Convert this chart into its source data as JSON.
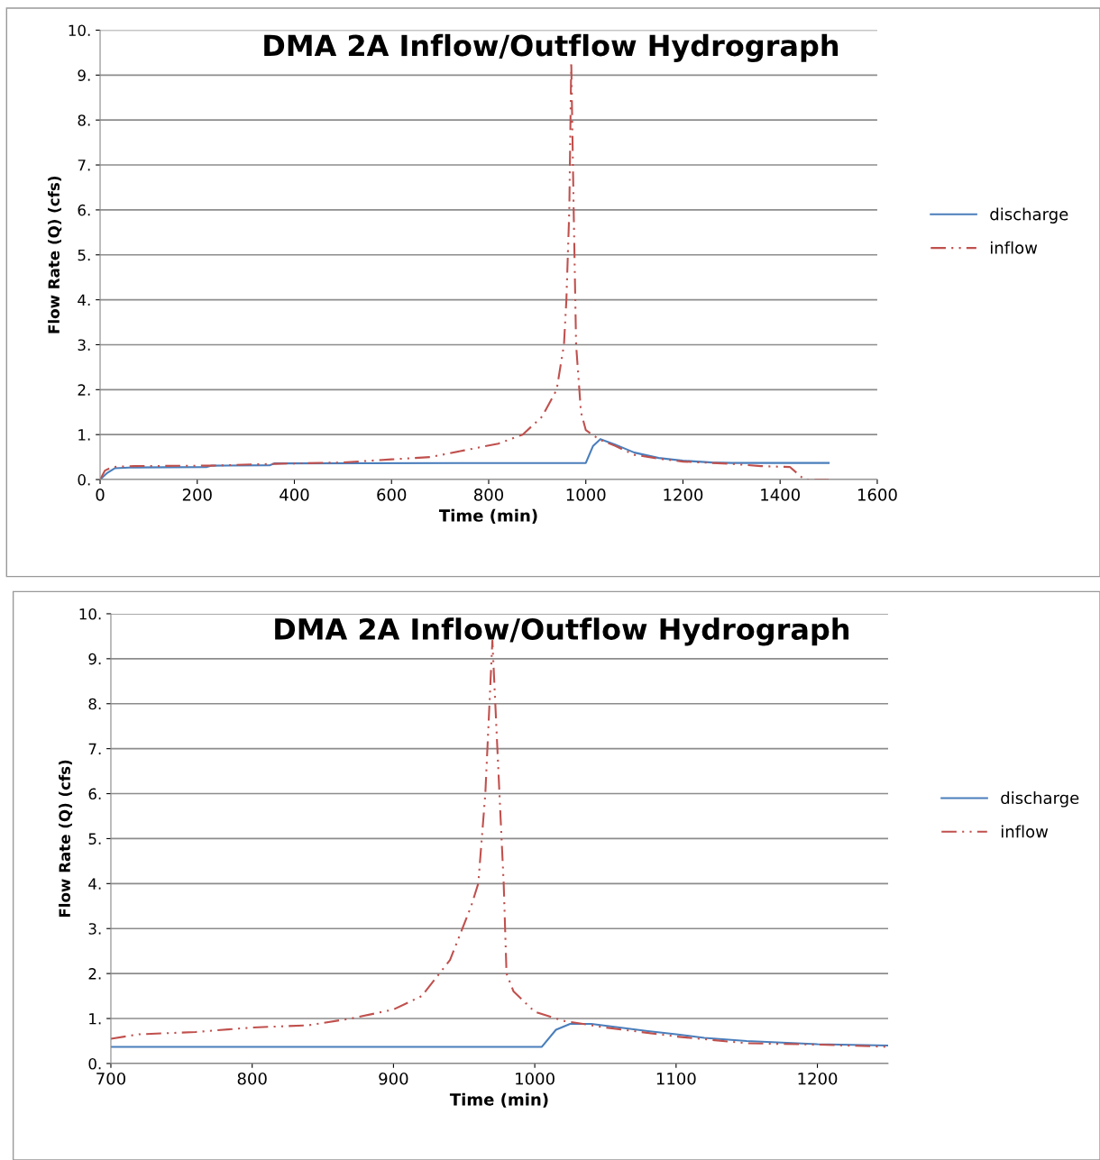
{
  "chart_data": [
    {
      "type": "line",
      "title": "DMA 2A Inflow/Outflow Hydrograph",
      "xlabel": "Time (min)",
      "ylabel": "Flow Rate (Q) (cfs)",
      "xlim": [
        0,
        1600
      ],
      "xticks": [
        0,
        200,
        400,
        600,
        800,
        1000,
        1200,
        1400,
        1600
      ],
      "ylim": [
        0,
        10
      ],
      "yticks": [
        {
          "value": 0,
          "label": "0."
        },
        {
          "value": 1,
          "label": "1."
        },
        {
          "value": 2,
          "label": "2."
        },
        {
          "value": 3,
          "label": "3."
        },
        {
          "value": 4,
          "label": "4."
        },
        {
          "value": 5,
          "label": "5."
        },
        {
          "value": 6,
          "label": "6."
        },
        {
          "value": 7,
          "label": "7."
        },
        {
          "value": 8,
          "label": "8."
        },
        {
          "value": 9,
          "label": "9."
        },
        {
          "value": 10,
          "label": "10."
        }
      ],
      "grid": "y",
      "legend": "right",
      "marker": "none",
      "series": [
        {
          "name": "discharge",
          "color": "#4a7ebb",
          "line_style": "solid",
          "x": [
            0,
            15,
            30,
            70,
            220,
            230,
            350,
            360,
            1000,
            1015,
            1030,
            1060,
            1100,
            1150,
            1200,
            1260,
            1300,
            1500
          ],
          "values": [
            0,
            0.15,
            0.25,
            0.27,
            0.28,
            0.31,
            0.32,
            0.36,
            0.37,
            0.75,
            0.9,
            0.78,
            0.6,
            0.48,
            0.42,
            0.38,
            0.37,
            0.37
          ]
        },
        {
          "name": "inflow",
          "color": "#c0504d",
          "line_style": "dashed",
          "x": [
            0,
            10,
            25,
            70,
            230,
            360,
            500,
            600,
            680,
            750,
            820,
            870,
            910,
            940,
            955,
            960,
            966,
            970,
            975,
            980,
            990,
            1000,
            1020,
            1030,
            1060,
            1100,
            1160,
            1200,
            1300,
            1360,
            1420,
            1450,
            1500
          ],
          "values": [
            0,
            0.2,
            0.28,
            0.3,
            0.31,
            0.35,
            0.38,
            0.45,
            0.5,
            0.65,
            0.8,
            1.0,
            1.4,
            2.0,
            3.0,
            4.0,
            6.0,
            9.3,
            6.0,
            3.0,
            1.5,
            1.1,
            0.95,
            0.88,
            0.75,
            0.55,
            0.45,
            0.4,
            0.35,
            0.3,
            0.28,
            0.0,
            0.0
          ]
        }
      ]
    },
    {
      "type": "line",
      "title": "DMA 2A Inflow/Outflow Hydrograph",
      "xlabel": "Time (min)",
      "ylabel": "Flow Rate (Q) (cfs)",
      "xlim": [
        700,
        1250
      ],
      "xticks": [
        700,
        800,
        900,
        1000,
        1100,
        1200
      ],
      "ylim": [
        0,
        10
      ],
      "yticks": [
        {
          "value": 0,
          "label": "0."
        },
        {
          "value": 1,
          "label": "1."
        },
        {
          "value": 2,
          "label": "2."
        },
        {
          "value": 3,
          "label": "3."
        },
        {
          "value": 4,
          "label": "4."
        },
        {
          "value": 5,
          "label": "5."
        },
        {
          "value": 6,
          "label": "6."
        },
        {
          "value": 7,
          "label": "7."
        },
        {
          "value": 8,
          "label": "8."
        },
        {
          "value": 9,
          "label": "9."
        },
        {
          "value": 10,
          "label": "10."
        }
      ],
      "grid": "y",
      "legend": "right",
      "marker": "none",
      "series": [
        {
          "name": "discharge",
          "color": "#4a7ebb",
          "line_style": "solid",
          "x": [
            700,
            1005,
            1015,
            1025,
            1040,
            1060,
            1080,
            1100,
            1120,
            1150,
            1200,
            1250
          ],
          "values": [
            0.37,
            0.37,
            0.75,
            0.88,
            0.88,
            0.8,
            0.72,
            0.65,
            0.57,
            0.5,
            0.43,
            0.4
          ]
        },
        {
          "name": "inflow",
          "color": "#c0504d",
          "line_style": "dashed",
          "x": [
            700,
            720,
            760,
            800,
            840,
            870,
            900,
            920,
            940,
            955,
            960,
            965,
            970,
            975,
            978,
            980,
            985,
            1000,
            1020,
            1030,
            1050,
            1100,
            1150,
            1200,
            1250
          ],
          "values": [
            0.55,
            0.65,
            0.7,
            0.8,
            0.85,
            1.0,
            1.2,
            1.5,
            2.3,
            3.5,
            4.0,
            6.0,
            9.4,
            6.0,
            4.0,
            2.0,
            1.6,
            1.15,
            0.95,
            0.9,
            0.8,
            0.6,
            0.45,
            0.42,
            0.37
          ]
        }
      ]
    }
  ]
}
